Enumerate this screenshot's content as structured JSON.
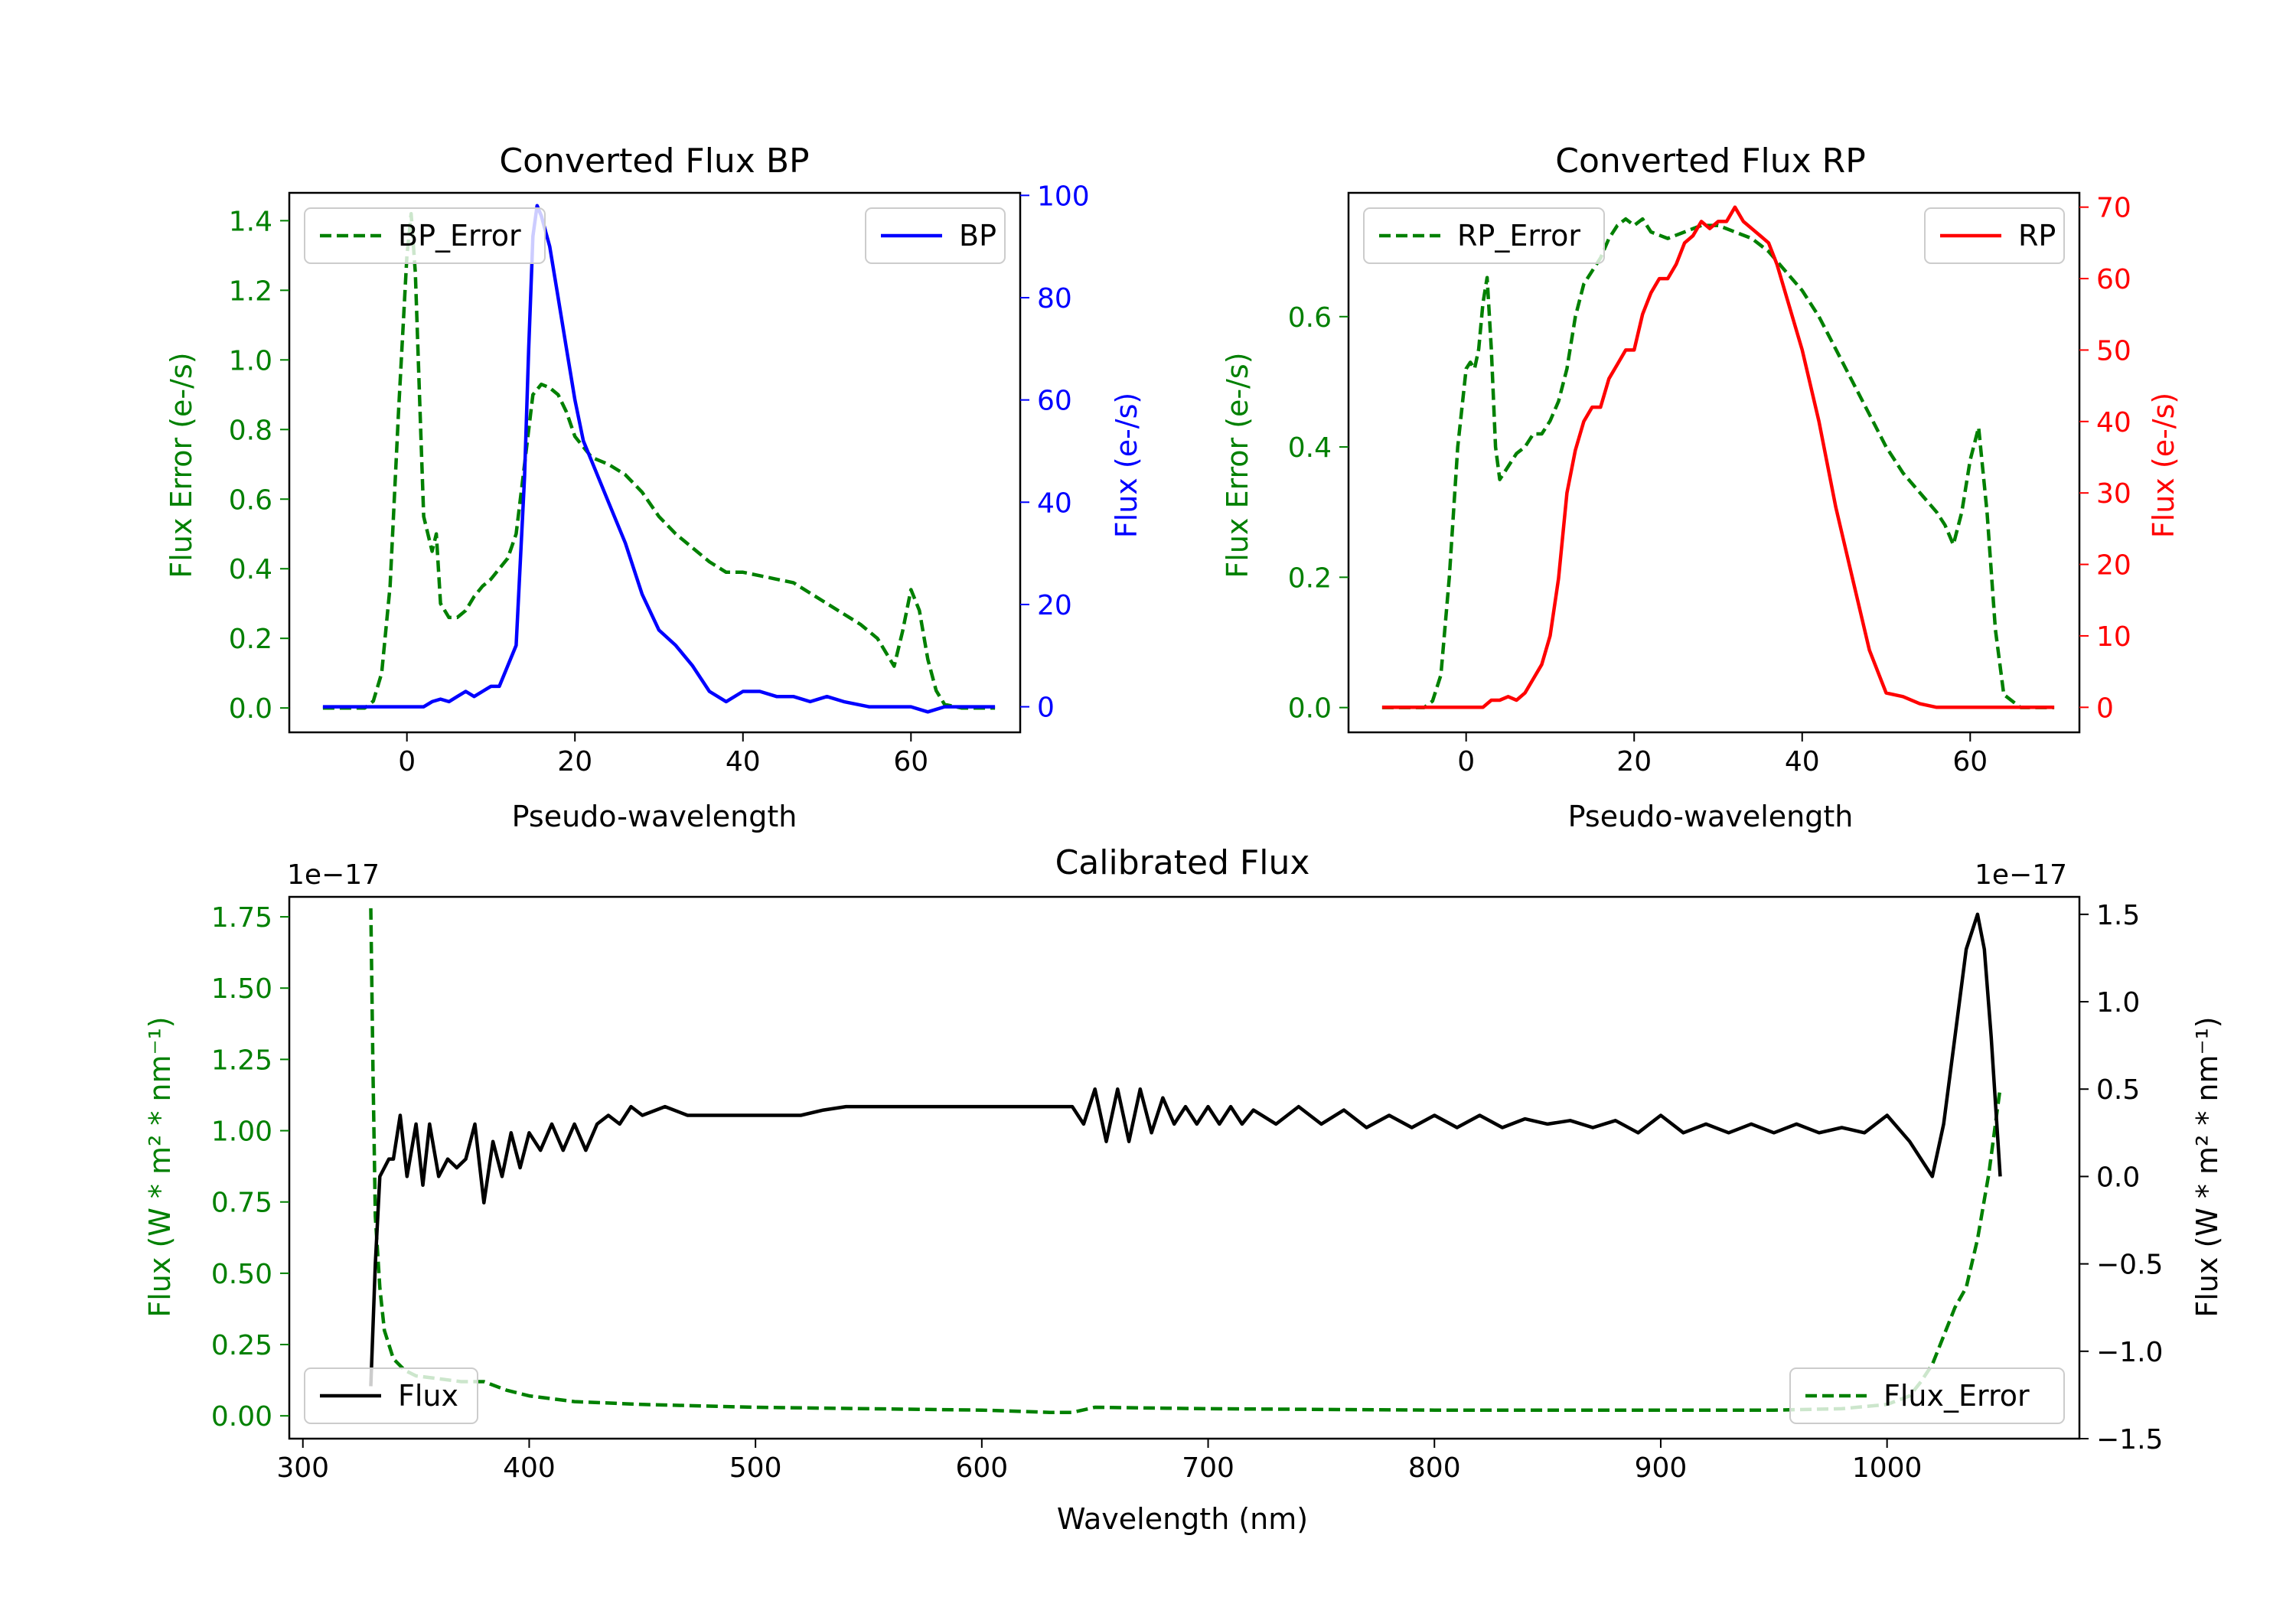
{
  "chart_data": [
    {
      "id": "bp",
      "type": "line",
      "title": "Converted Flux BP",
      "xlabel": "Pseudo-wavelength",
      "xlim": [
        -14,
        73
      ],
      "xticks": [
        0,
        20,
        40,
        60
      ],
      "left_axis": {
        "label": "Flux Error (e-/s)",
        "color": "#008000",
        "ylim": [
          -0.07,
          1.48
        ],
        "ticks": [
          0.0,
          0.2,
          0.4,
          0.6,
          0.8,
          1.0,
          1.2,
          1.4
        ],
        "tick_labels": [
          "0.0",
          "0.2",
          "0.4",
          "0.6",
          "0.8",
          "1.0",
          "1.2",
          "1.4"
        ]
      },
      "right_axis": {
        "label": "Flux (e-/s)",
        "color": "#0000ff",
        "ylim": [
          -5,
          100.5
        ],
        "ticks": [
          0,
          20,
          40,
          60,
          80,
          100
        ],
        "tick_labels": [
          "0",
          "20",
          "40",
          "60",
          "80",
          "100"
        ]
      },
      "series": [
        {
          "name": "BP_Error",
          "axis": "left",
          "color": "#008000",
          "dash": "dashed",
          "x": [
            -10,
            -5,
            -4,
            -3,
            -2,
            -1,
            0,
            0.5,
            1,
            1.5,
            2,
            3,
            3.5,
            4,
            5,
            6,
            7,
            8,
            9,
            10,
            11,
            12,
            13,
            14,
            15,
            16,
            17,
            18,
            19,
            20,
            22,
            24,
            26,
            28,
            30,
            32,
            34,
            36,
            38,
            40,
            42,
            44,
            46,
            48,
            50,
            52,
            54,
            56,
            57,
            58,
            59,
            60,
            61,
            62,
            63,
            64,
            66,
            68,
            70
          ],
          "y": [
            0.0,
            0.0,
            0.02,
            0.1,
            0.35,
            0.85,
            1.3,
            1.42,
            1.25,
            0.9,
            0.55,
            0.45,
            0.5,
            0.3,
            0.26,
            0.26,
            0.28,
            0.32,
            0.35,
            0.37,
            0.4,
            0.43,
            0.5,
            0.7,
            0.9,
            0.93,
            0.92,
            0.9,
            0.85,
            0.78,
            0.72,
            0.7,
            0.67,
            0.62,
            0.55,
            0.5,
            0.46,
            0.42,
            0.39,
            0.39,
            0.38,
            0.37,
            0.36,
            0.33,
            0.3,
            0.27,
            0.24,
            0.2,
            0.16,
            0.12,
            0.22,
            0.34,
            0.28,
            0.14,
            0.05,
            0.01,
            0.0,
            0.0,
            0.0
          ]
        },
        {
          "name": "BP",
          "axis": "right",
          "color": "#0000ff",
          "dash": "solid",
          "x": [
            -10,
            -5,
            0,
            2,
            3,
            4,
            5,
            6,
            7,
            8,
            9,
            10,
            11,
            12,
            13,
            14,
            14.5,
            15,
            15.5,
            16,
            17,
            18,
            19,
            20,
            21,
            22,
            24,
            26,
            28,
            30,
            32,
            34,
            36,
            38,
            40,
            42,
            44,
            46,
            48,
            50,
            52,
            55,
            58,
            60,
            62,
            64,
            66,
            70
          ],
          "y": [
            0,
            0,
            0,
            0,
            1,
            1.5,
            1,
            2,
            3,
            2,
            3,
            4,
            4,
            8,
            12,
            45,
            70,
            92,
            98,
            96,
            90,
            80,
            70,
            60,
            52,
            48,
            40,
            32,
            22,
            15,
            12,
            8,
            3,
            1,
            3,
            3,
            2,
            2,
            1,
            2,
            1,
            0,
            0,
            0,
            -1,
            0,
            0,
            0
          ]
        }
      ],
      "legends": [
        {
          "labels": [
            "BP_Error"
          ],
          "loc": "upper-left"
        },
        {
          "labels": [
            "BP"
          ],
          "loc": "upper-right"
        }
      ]
    },
    {
      "id": "rp",
      "type": "line",
      "title": "Converted Flux RP",
      "xlabel": "Pseudo-wavelength",
      "xlim": [
        -14,
        73
      ],
      "xticks": [
        0,
        20,
        40,
        60
      ],
      "left_axis": {
        "label": "Flux Error (e-/s)",
        "color": "#008000",
        "ylim": [
          -0.038,
          0.79
        ],
        "ticks": [
          0.0,
          0.2,
          0.4,
          0.6
        ],
        "tick_labels": [
          "0.0",
          "0.2",
          "0.4",
          "0.6"
        ]
      },
      "right_axis": {
        "label": "Flux (e-/s)",
        "color": "#ff0000",
        "ylim": [
          -3.5,
          72
        ],
        "ticks": [
          0,
          10,
          20,
          30,
          40,
          50,
          60,
          70
        ],
        "tick_labels": [
          "0",
          "10",
          "20",
          "30",
          "40",
          "50",
          "60",
          "70"
        ]
      },
      "series": [
        {
          "name": "RP_Error",
          "axis": "left",
          "color": "#008000",
          "dash": "dashed",
          "x": [
            -10,
            -5,
            -4,
            -3,
            -2,
            -1,
            0,
            0.5,
            1,
            1.5,
            2,
            2.5,
            3,
            3.5,
            4,
            5,
            6,
            7,
            8,
            9,
            10,
            11,
            12,
            13,
            14,
            15,
            16,
            17,
            18,
            19,
            20,
            21,
            22,
            24,
            26,
            28,
            30,
            32,
            34,
            36,
            38,
            40,
            42,
            44,
            46,
            48,
            50,
            52,
            54,
            56,
            57,
            58,
            59,
            60,
            61,
            62,
            63,
            64,
            66,
            70
          ],
          "y": [
            0.0,
            0.0,
            0.01,
            0.05,
            0.2,
            0.4,
            0.52,
            0.53,
            0.52,
            0.55,
            0.62,
            0.66,
            0.55,
            0.4,
            0.35,
            0.37,
            0.39,
            0.4,
            0.42,
            0.42,
            0.44,
            0.47,
            0.52,
            0.6,
            0.65,
            0.67,
            0.69,
            0.72,
            0.74,
            0.75,
            0.74,
            0.75,
            0.73,
            0.72,
            0.73,
            0.74,
            0.74,
            0.73,
            0.72,
            0.7,
            0.67,
            0.64,
            0.6,
            0.55,
            0.5,
            0.45,
            0.4,
            0.36,
            0.33,
            0.3,
            0.28,
            0.25,
            0.3,
            0.38,
            0.43,
            0.3,
            0.12,
            0.02,
            0.0,
            0.0
          ]
        },
        {
          "name": "RP",
          "axis": "right",
          "color": "#ff0000",
          "dash": "solid",
          "x": [
            -10,
            -5,
            0,
            2,
            3,
            4,
            5,
            6,
            7,
            8,
            9,
            10,
            11,
            12,
            13,
            14,
            15,
            16,
            17,
            18,
            19,
            20,
            21,
            22,
            23,
            24,
            25,
            26,
            27,
            28,
            29,
            30,
            31,
            32,
            33,
            34,
            35,
            36,
            37,
            38,
            40,
            42,
            44,
            46,
            48,
            50,
            52,
            54,
            56,
            58,
            60,
            62,
            66,
            70
          ],
          "y": [
            0,
            0,
            0,
            0,
            1,
            1,
            1.5,
            1,
            2,
            4,
            6,
            10,
            18,
            30,
            36,
            40,
            42,
            42,
            46,
            48,
            50,
            50,
            55,
            58,
            60,
            60,
            62,
            65,
            66,
            68,
            67,
            68,
            68,
            70,
            68,
            67,
            66,
            65,
            62,
            58,
            50,
            40,
            28,
            18,
            8,
            2,
            1.5,
            0.5,
            0,
            0,
            0,
            0,
            0,
            0
          ]
        }
      ],
      "legends": [
        {
          "labels": [
            "RP_Error"
          ],
          "loc": "upper-left"
        },
        {
          "labels": [
            "RP"
          ],
          "loc": "upper-right"
        }
      ]
    },
    {
      "id": "cal",
      "type": "line",
      "title": "Calibrated Flux",
      "xlabel": "Wavelength (nm)",
      "xlim": [
        294,
        1085
      ],
      "xticks": [
        300,
        400,
        500,
        600,
        700,
        800,
        900,
        1000
      ],
      "left_axis": {
        "label": "Flux (W * m² * nm⁻¹)",
        "color": "#008000",
        "offset_text": "1e−17",
        "ylim": [
          -0.08,
          1.82
        ],
        "ticks": [
          0.0,
          0.25,
          0.5,
          0.75,
          1.0,
          1.25,
          1.5,
          1.75
        ],
        "tick_labels": [
          "0.00",
          "0.25",
          "0.50",
          "0.75",
          "1.00",
          "1.25",
          "1.50",
          "1.75"
        ]
      },
      "right_axis": {
        "label": "Flux (W * m² * nm⁻¹)",
        "color": "#000000",
        "offset_text": "1e−17",
        "ylim": [
          -1.5,
          1.6
        ],
        "ticks": [
          -1.5,
          -1.0,
          -0.5,
          0.0,
          0.5,
          1.0,
          1.5
        ],
        "tick_labels": [
          "−1.5",
          "−1.0",
          "−0.5",
          "0.0",
          "0.5",
          "1.0",
          "1.5"
        ]
      },
      "series": [
        {
          "name": "Flux_Error",
          "axis": "left",
          "color": "#008000",
          "dash": "dashed",
          "x": [
            330,
            331,
            332,
            334,
            336,
            340,
            345,
            350,
            360,
            370,
            380,
            390,
            400,
            420,
            450,
            500,
            550,
            600,
            630,
            640,
            650,
            700,
            800,
            900,
            950,
            980,
            1000,
            1010,
            1015,
            1020,
            1025,
            1030,
            1035,
            1040,
            1045,
            1050
          ],
          "y": [
            1.78,
            1.2,
            0.7,
            0.45,
            0.3,
            0.2,
            0.16,
            0.14,
            0.13,
            0.12,
            0.12,
            0.09,
            0.07,
            0.05,
            0.04,
            0.03,
            0.025,
            0.02,
            0.012,
            0.012,
            0.03,
            0.025,
            0.02,
            0.02,
            0.02,
            0.025,
            0.04,
            0.07,
            0.12,
            0.18,
            0.28,
            0.38,
            0.45,
            0.62,
            0.85,
            1.15
          ]
        },
        {
          "name": "Flux",
          "axis": "right",
          "color": "#000000",
          "dash": "solid",
          "x": [
            330,
            332,
            334,
            336,
            338,
            340,
            343,
            346,
            350,
            353,
            356,
            360,
            364,
            368,
            372,
            376,
            380,
            384,
            388,
            392,
            396,
            400,
            405,
            410,
            415,
            420,
            425,
            430,
            435,
            440,
            445,
            450,
            460,
            470,
            480,
            490,
            500,
            510,
            520,
            530,
            540,
            550,
            560,
            570,
            580,
            590,
            600,
            610,
            620,
            630,
            640,
            645,
            650,
            655,
            660,
            665,
            670,
            675,
            680,
            685,
            690,
            695,
            700,
            705,
            710,
            715,
            720,
            730,
            740,
            750,
            760,
            770,
            780,
            790,
            800,
            810,
            820,
            830,
            840,
            850,
            860,
            870,
            880,
            890,
            900,
            910,
            920,
            930,
            940,
            950,
            960,
            970,
            980,
            990,
            1000,
            1010,
            1020,
            1025,
            1030,
            1035,
            1040,
            1043,
            1046,
            1050
          ],
          "y": [
            -1.2,
            -0.5,
            0.0,
            0.05,
            0.1,
            0.1,
            0.35,
            0.0,
            0.3,
            -0.05,
            0.3,
            0.0,
            0.1,
            0.05,
            0.1,
            0.3,
            -0.15,
            0.2,
            0.0,
            0.25,
            0.05,
            0.25,
            0.15,
            0.3,
            0.15,
            0.3,
            0.15,
            0.3,
            0.35,
            0.3,
            0.4,
            0.35,
            0.4,
            0.35,
            0.35,
            0.35,
            0.35,
            0.35,
            0.35,
            0.38,
            0.4,
            0.4,
            0.4,
            0.4,
            0.4,
            0.4,
            0.4,
            0.4,
            0.4,
            0.4,
            0.4,
            0.3,
            0.5,
            0.2,
            0.5,
            0.2,
            0.5,
            0.25,
            0.45,
            0.3,
            0.4,
            0.3,
            0.4,
            0.3,
            0.4,
            0.3,
            0.38,
            0.3,
            0.4,
            0.3,
            0.38,
            0.28,
            0.35,
            0.28,
            0.35,
            0.28,
            0.35,
            0.28,
            0.33,
            0.3,
            0.32,
            0.28,
            0.32,
            0.25,
            0.35,
            0.25,
            0.3,
            0.25,
            0.3,
            0.25,
            0.3,
            0.25,
            0.28,
            0.25,
            0.35,
            0.2,
            0.0,
            0.3,
            0.8,
            1.3,
            1.5,
            1.3,
            0.8,
            0.0
          ]
        }
      ],
      "legends": [
        {
          "labels": [
            "Flux"
          ],
          "loc": "lower-left"
        },
        {
          "labels": [
            "Flux_Error"
          ],
          "loc": "lower-right"
        }
      ]
    }
  ]
}
